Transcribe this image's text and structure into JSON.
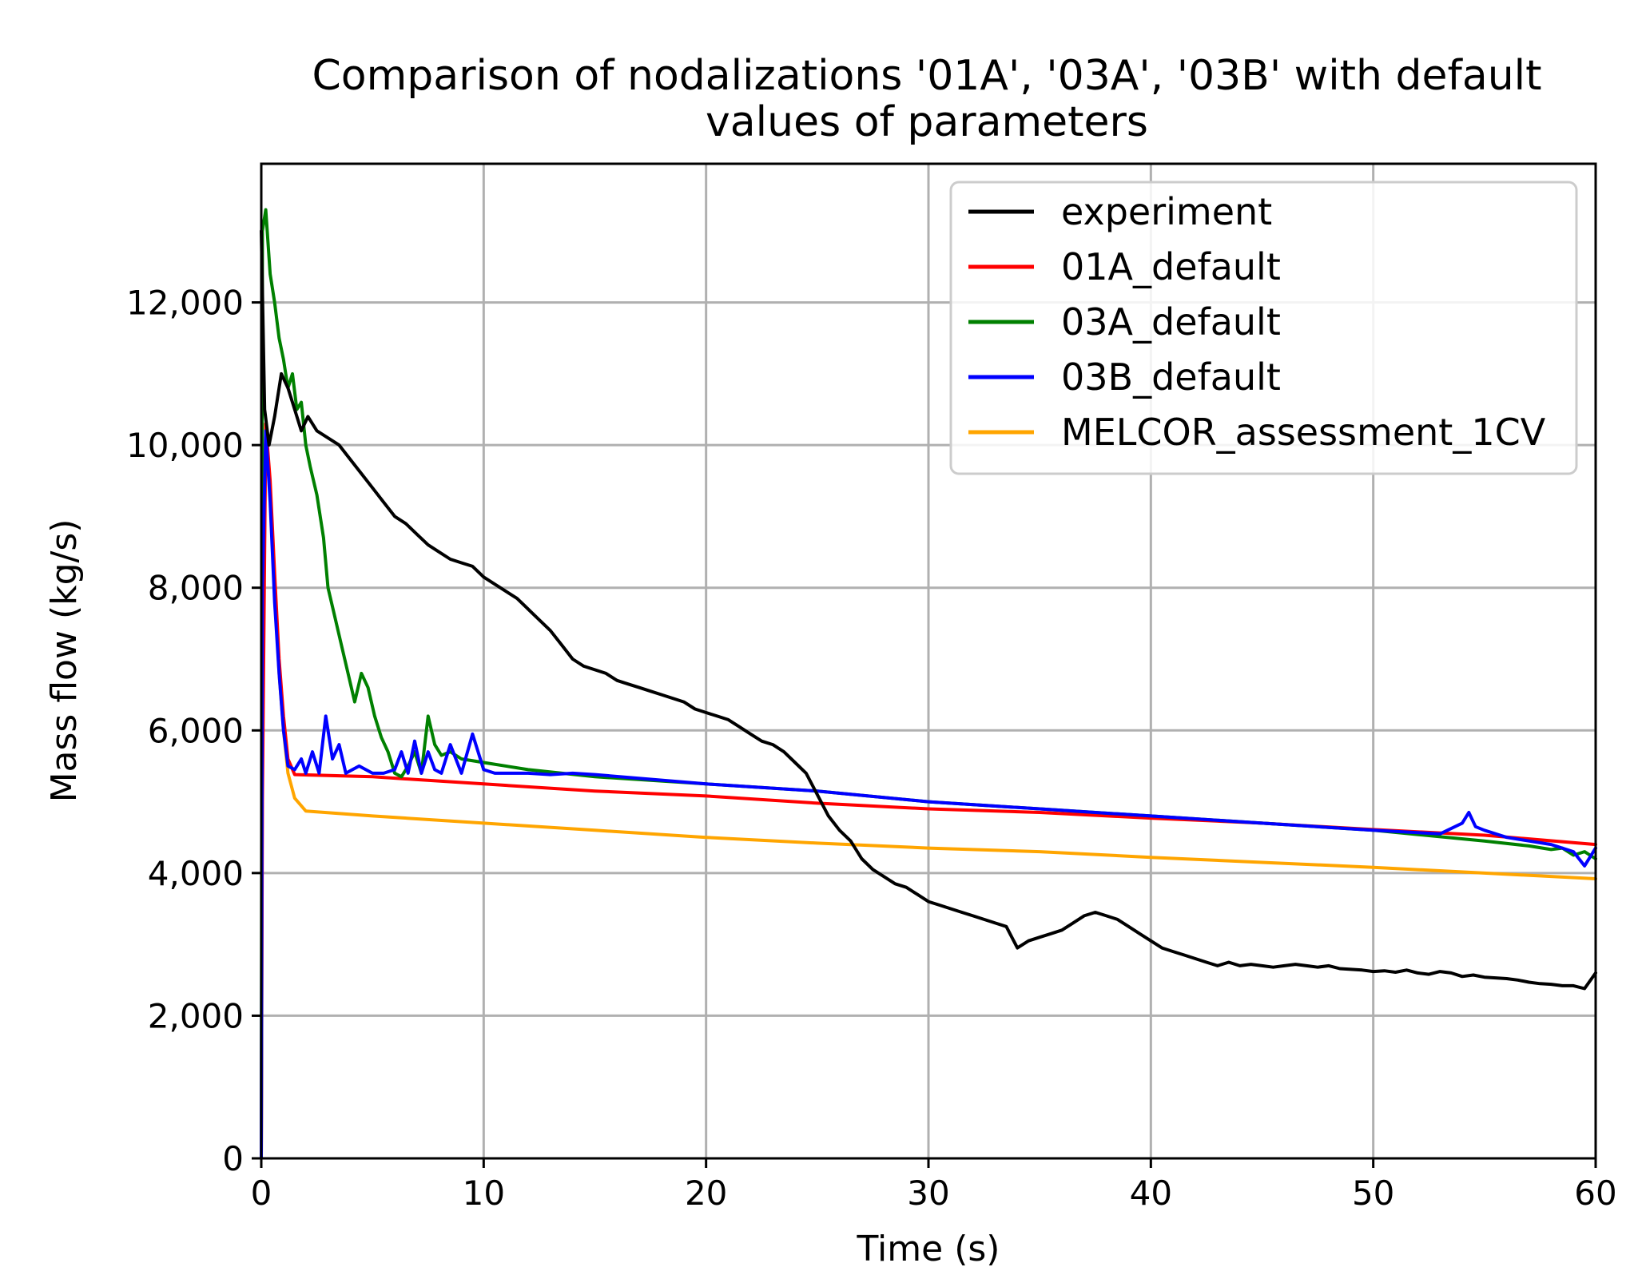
{
  "chart_data": {
    "type": "line",
    "title_lines": [
      "Comparison of nodalizations '01A', '03A', '03B' with default",
      "values of parameters"
    ],
    "xlabel": "Time (s)",
    "ylabel": "Mass flow (kg/s)",
    "xlim": [
      0,
      60
    ],
    "ylim": [
      0,
      14000
    ],
    "xticks": [
      0,
      10,
      20,
      30,
      40,
      50,
      60
    ],
    "xtick_labels": [
      "0",
      "10",
      "20",
      "30",
      "40",
      "50",
      "60"
    ],
    "yticks": [
      0,
      2000,
      4000,
      6000,
      8000,
      10000,
      12000
    ],
    "ytick_labels": [
      "0",
      "2,000",
      "4,000",
      "6,000",
      "8,000",
      "10,000",
      "12,000"
    ],
    "grid": true,
    "legend_position": "top-right",
    "series": [
      {
        "name": "experiment",
        "color": "#000000",
        "x": [
          0,
          0.15,
          0.35,
          0.6,
          0.9,
          1.2,
          1.5,
          1.8,
          2.1,
          2.5,
          3,
          3.5,
          4,
          4.5,
          5,
          5.5,
          6,
          6.5,
          7,
          7.5,
          8,
          8.5,
          9,
          9.5,
          10,
          10.5,
          11,
          11.5,
          12,
          12.5,
          13,
          13.5,
          14,
          14.5,
          15,
          15.5,
          16,
          16.5,
          17,
          17.5,
          18,
          18.5,
          19,
          19.5,
          20,
          20.5,
          21,
          21.5,
          22,
          22.5,
          23,
          23.5,
          24,
          24.5,
          25,
          25.5,
          26,
          26.5,
          27,
          27.5,
          28,
          28.5,
          29,
          29.5,
          30,
          30.5,
          31,
          31.5,
          32,
          32.5,
          33,
          33.5,
          34,
          34.5,
          35,
          35.5,
          36,
          36.5,
          37,
          37.5,
          38,
          38.5,
          39,
          39.5,
          40,
          40.5,
          41,
          41.5,
          42,
          42.5,
          43,
          43.5,
          44,
          44.5,
          45,
          45.5,
          46,
          46.5,
          47,
          47.5,
          48,
          48.5,
          49,
          49.5,
          50,
          50.5,
          51,
          51.5,
          52,
          52.5,
          53,
          53.5,
          54,
          54.5,
          55,
          55.5,
          56,
          56.5,
          57,
          57.5,
          58,
          58.5,
          59,
          59.5,
          60
        ],
        "values": [
          13000,
          10500,
          10000,
          10400,
          11000,
          10800,
          10500,
          10200,
          10400,
          10200,
          10100,
          10000,
          9800,
          9600,
          9400,
          9200,
          9000,
          8900,
          8750,
          8600,
          8500,
          8400,
          8350,
          8300,
          8150,
          8050,
          7950,
          7850,
          7700,
          7550,
          7400,
          7200,
          7000,
          6900,
          6850,
          6800,
          6700,
          6650,
          6600,
          6550,
          6500,
          6450,
          6400,
          6300,
          6250,
          6200,
          6150,
          6050,
          5950,
          5850,
          5800,
          5700,
          5550,
          5400,
          5100,
          4800,
          4600,
          4450,
          4200,
          4050,
          3950,
          3850,
          3800,
          3700,
          3600,
          3550,
          3500,
          3450,
          3400,
          3350,
          3300,
          3250,
          2950,
          3050,
          3100,
          3150,
          3200,
          3300,
          3400,
          3450,
          3400,
          3350,
          3250,
          3150,
          3050,
          2950,
          2900,
          2850,
          2800,
          2750,
          2700,
          2750,
          2700,
          2720,
          2700,
          2680,
          2700,
          2720,
          2700,
          2680,
          2700,
          2660,
          2650,
          2640,
          2620,
          2630,
          2610,
          2640,
          2600,
          2580,
          2620,
          2600,
          2550,
          2570,
          2540,
          2530,
          2520,
          2500,
          2470,
          2450,
          2440,
          2420,
          2420,
          2380,
          2600
        ]
      },
      {
        "name": "01A_default",
        "color": "#ff0000",
        "x": [
          0,
          0.05,
          0.2,
          0.4,
          0.6,
          0.8,
          1,
          1.2,
          1.5,
          5,
          10,
          15,
          20,
          25,
          30,
          35,
          40,
          45,
          50,
          55,
          60
        ],
        "values": [
          0,
          5000,
          10300,
          9500,
          8200,
          7000,
          6200,
          5600,
          5380,
          5350,
          5250,
          5150,
          5080,
          4980,
          4900,
          4850,
          4770,
          4700,
          4610,
          4530,
          4400
        ]
      },
      {
        "name": "03A_default",
        "color": "#008000",
        "x": [
          0,
          0.05,
          0.2,
          0.4,
          0.6,
          0.8,
          1,
          1.2,
          1.4,
          1.6,
          1.8,
          2,
          2.2,
          2.5,
          2.8,
          3,
          3.3,
          3.6,
          3.9,
          4.2,
          4.5,
          4.8,
          5.1,
          5.4,
          5.7,
          6,
          6.3,
          6.6,
          6.9,
          7.2,
          7.5,
          7.8,
          8.1,
          8.5,
          9,
          10,
          12,
          15,
          20,
          25,
          30,
          35,
          40,
          45,
          50,
          55,
          57,
          58,
          58.5,
          59,
          59.5,
          60
        ],
        "values": [
          0,
          13000,
          13300,
          12400,
          12000,
          11500,
          11200,
          10800,
          11000,
          10500,
          10600,
          10000,
          9700,
          9300,
          8700,
          8000,
          7600,
          7200,
          6800,
          6400,
          6800,
          6600,
          6200,
          5900,
          5700,
          5400,
          5350,
          5500,
          5700,
          5400,
          6200,
          5800,
          5650,
          5700,
          5600,
          5550,
          5450,
          5350,
          5250,
          5150,
          5000,
          4900,
          4800,
          4700,
          4600,
          4450,
          4380,
          4330,
          4350,
          4250,
          4300,
          4200
        ]
      },
      {
        "name": "03B_default",
        "color": "#0000ff",
        "x": [
          0,
          0.05,
          0.2,
          0.4,
          0.6,
          0.8,
          1,
          1.2,
          1.5,
          1.8,
          2,
          2.3,
          2.6,
          2.9,
          3.2,
          3.5,
          3.8,
          4.1,
          4.4,
          4.7,
          5,
          5.5,
          6,
          6.3,
          6.6,
          6.9,
          7.2,
          7.5,
          7.8,
          8.1,
          8.5,
          9,
          9.5,
          10,
          10.5,
          11,
          12,
          13,
          14,
          15,
          20,
          25,
          30,
          35,
          40,
          45,
          50,
          53,
          54,
          54.3,
          54.6,
          55,
          56,
          57,
          58,
          59,
          59.5,
          60
        ],
        "values": [
          0,
          8000,
          10200,
          9200,
          7800,
          6800,
          6000,
          5500,
          5450,
          5600,
          5400,
          5700,
          5400,
          6200,
          5600,
          5800,
          5400,
          5450,
          5500,
          5450,
          5400,
          5400,
          5450,
          5700,
          5400,
          5850,
          5400,
          5700,
          5450,
          5400,
          5800,
          5400,
          5950,
          5450,
          5400,
          5400,
          5400,
          5380,
          5400,
          5380,
          5250,
          5150,
          5000,
          4900,
          4800,
          4700,
          4600,
          4550,
          4700,
          4850,
          4650,
          4600,
          4500,
          4450,
          4400,
          4300,
          4100,
          4350
        ]
      },
      {
        "name": "MELCOR_assessment_1CV",
        "color": "#ffa500",
        "x": [
          0,
          0.05,
          0.2,
          0.4,
          0.6,
          0.8,
          1,
          1.2,
          1.5,
          2,
          5,
          10,
          15,
          20,
          25,
          30,
          35,
          40,
          45,
          50,
          55,
          60
        ],
        "values": [
          0,
          6000,
          10300,
          9300,
          8000,
          6800,
          6000,
          5400,
          5050,
          4870,
          4800,
          4700,
          4600,
          4500,
          4420,
          4350,
          4300,
          4220,
          4150,
          4080,
          4000,
          3920
        ]
      }
    ]
  }
}
